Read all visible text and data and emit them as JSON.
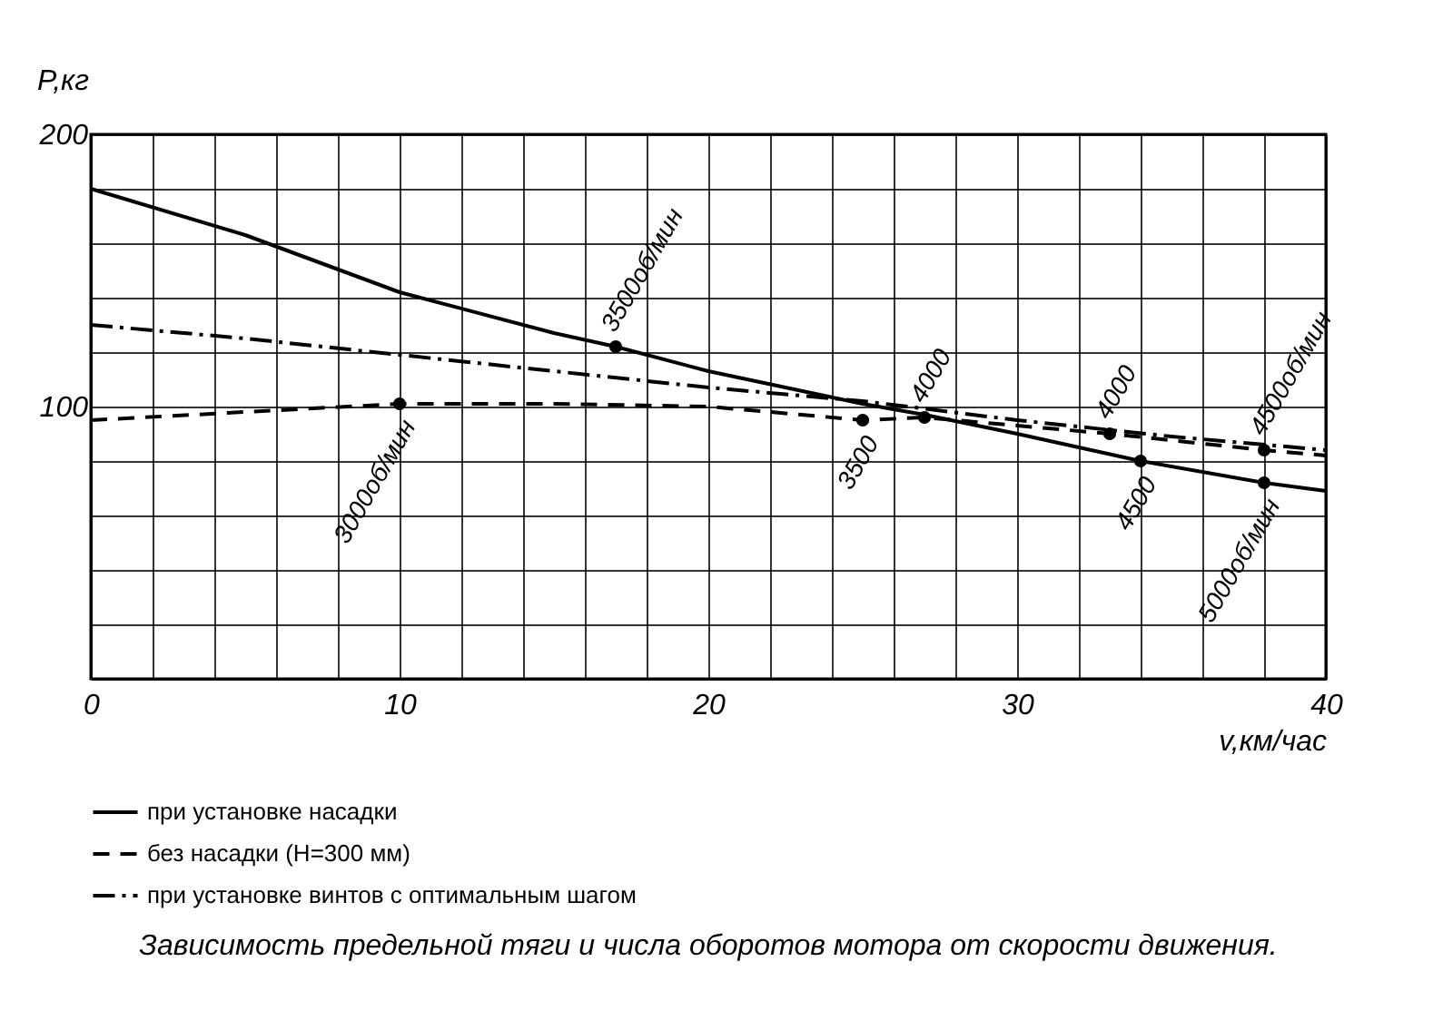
{
  "chart_data": {
    "type": "line",
    "title": "Зависимость предельной тяги и числа оборотов мотора от скорости движения.",
    "xlabel": "v,км/час",
    "ylabel": "P,кг",
    "xlim": [
      0,
      40
    ],
    "ylim": [
      0,
      200
    ],
    "xticks": [
      0,
      {
        "value": 2,
        "label": null
      },
      {
        "value": 4,
        "label": null
      },
      {
        "value": 6,
        "label": null
      },
      {
        "value": 8,
        "label": null
      },
      10,
      {
        "value": 12,
        "label": null
      },
      {
        "value": 14,
        "label": null
      },
      {
        "value": 16,
        "label": null
      },
      {
        "value": 18,
        "label": null
      },
      20,
      {
        "value": 22,
        "label": null
      },
      {
        "value": 24,
        "label": null
      },
      {
        "value": 26,
        "label": null
      },
      {
        "value": 28,
        "label": null
      },
      30,
      {
        "value": 32,
        "label": null
      },
      {
        "value": 34,
        "label": null
      },
      {
        "value": 36,
        "label": null
      },
      {
        "value": 38,
        "label": null
      },
      40
    ],
    "yticks": [
      {
        "value": 0,
        "label": null
      },
      {
        "value": 20,
        "label": null
      },
      {
        "value": 40,
        "label": null
      },
      {
        "value": 60,
        "label": null
      },
      {
        "value": 80,
        "label": null
      },
      100,
      {
        "value": 120,
        "label": null
      },
      {
        "value": 140,
        "label": null
      },
      {
        "value": 160,
        "label": null
      },
      {
        "value": 180,
        "label": null
      },
      200
    ],
    "grid": true,
    "legend": "bottom",
    "series": [
      {
        "name": "при установке насадки",
        "color": "#000000",
        "line_style": "solid",
        "x": [
          0,
          5,
          10,
          15,
          17,
          20,
          25,
          27,
          30,
          34,
          38,
          40
        ],
        "values": [
          180,
          163,
          142,
          127,
          122,
          113,
          101,
          97,
          90,
          80,
          72,
          69
        ]
      },
      {
        "name": "без насадки (H=300 мм)",
        "color": "#000000",
        "line_style": "dashed",
        "x": [
          0,
          5,
          10,
          15,
          20,
          25,
          27,
          30,
          33,
          38,
          40
        ],
        "values": [
          95,
          98,
          101,
          101,
          100,
          95,
          96,
          93,
          90,
          84,
          82
        ]
      },
      {
        "name": "при установке винтов с оптимальным шагом",
        "color": "#000000",
        "line_style": "dotted",
        "x": [
          0,
          5,
          10,
          15,
          20,
          25,
          30,
          35,
          40
        ],
        "values": [
          130,
          125,
          119,
          113,
          107,
          102,
          95,
          89,
          84
        ]
      },
      {
        "type": "scatter",
        "color": "#000000",
        "marker": "circle",
        "x": [
          10,
          17,
          25,
          27,
          33,
          34,
          38,
          38
        ],
        "values": [
          101,
          122,
          95,
          96,
          90,
          80,
          84,
          72
        ]
      }
    ],
    "annotations": [
      {
        "text": "3000об/мин",
        "x": 10,
        "y": 101
      },
      {
        "text": "3500об/мин",
        "x": 17,
        "y": 122
      },
      {
        "text": "3500",
        "x": 25,
        "y": 95
      },
      {
        "text": "4000",
        "x": 27,
        "y": 96
      },
      {
        "text": "4000",
        "x": 33,
        "y": 90
      },
      {
        "text": "4500",
        "x": 34,
        "y": 80
      },
      {
        "text": "4500об/мин",
        "x": 38,
        "y": 84
      },
      {
        "text": "5000об/мин",
        "x": 38,
        "y": 72
      }
    ]
  }
}
